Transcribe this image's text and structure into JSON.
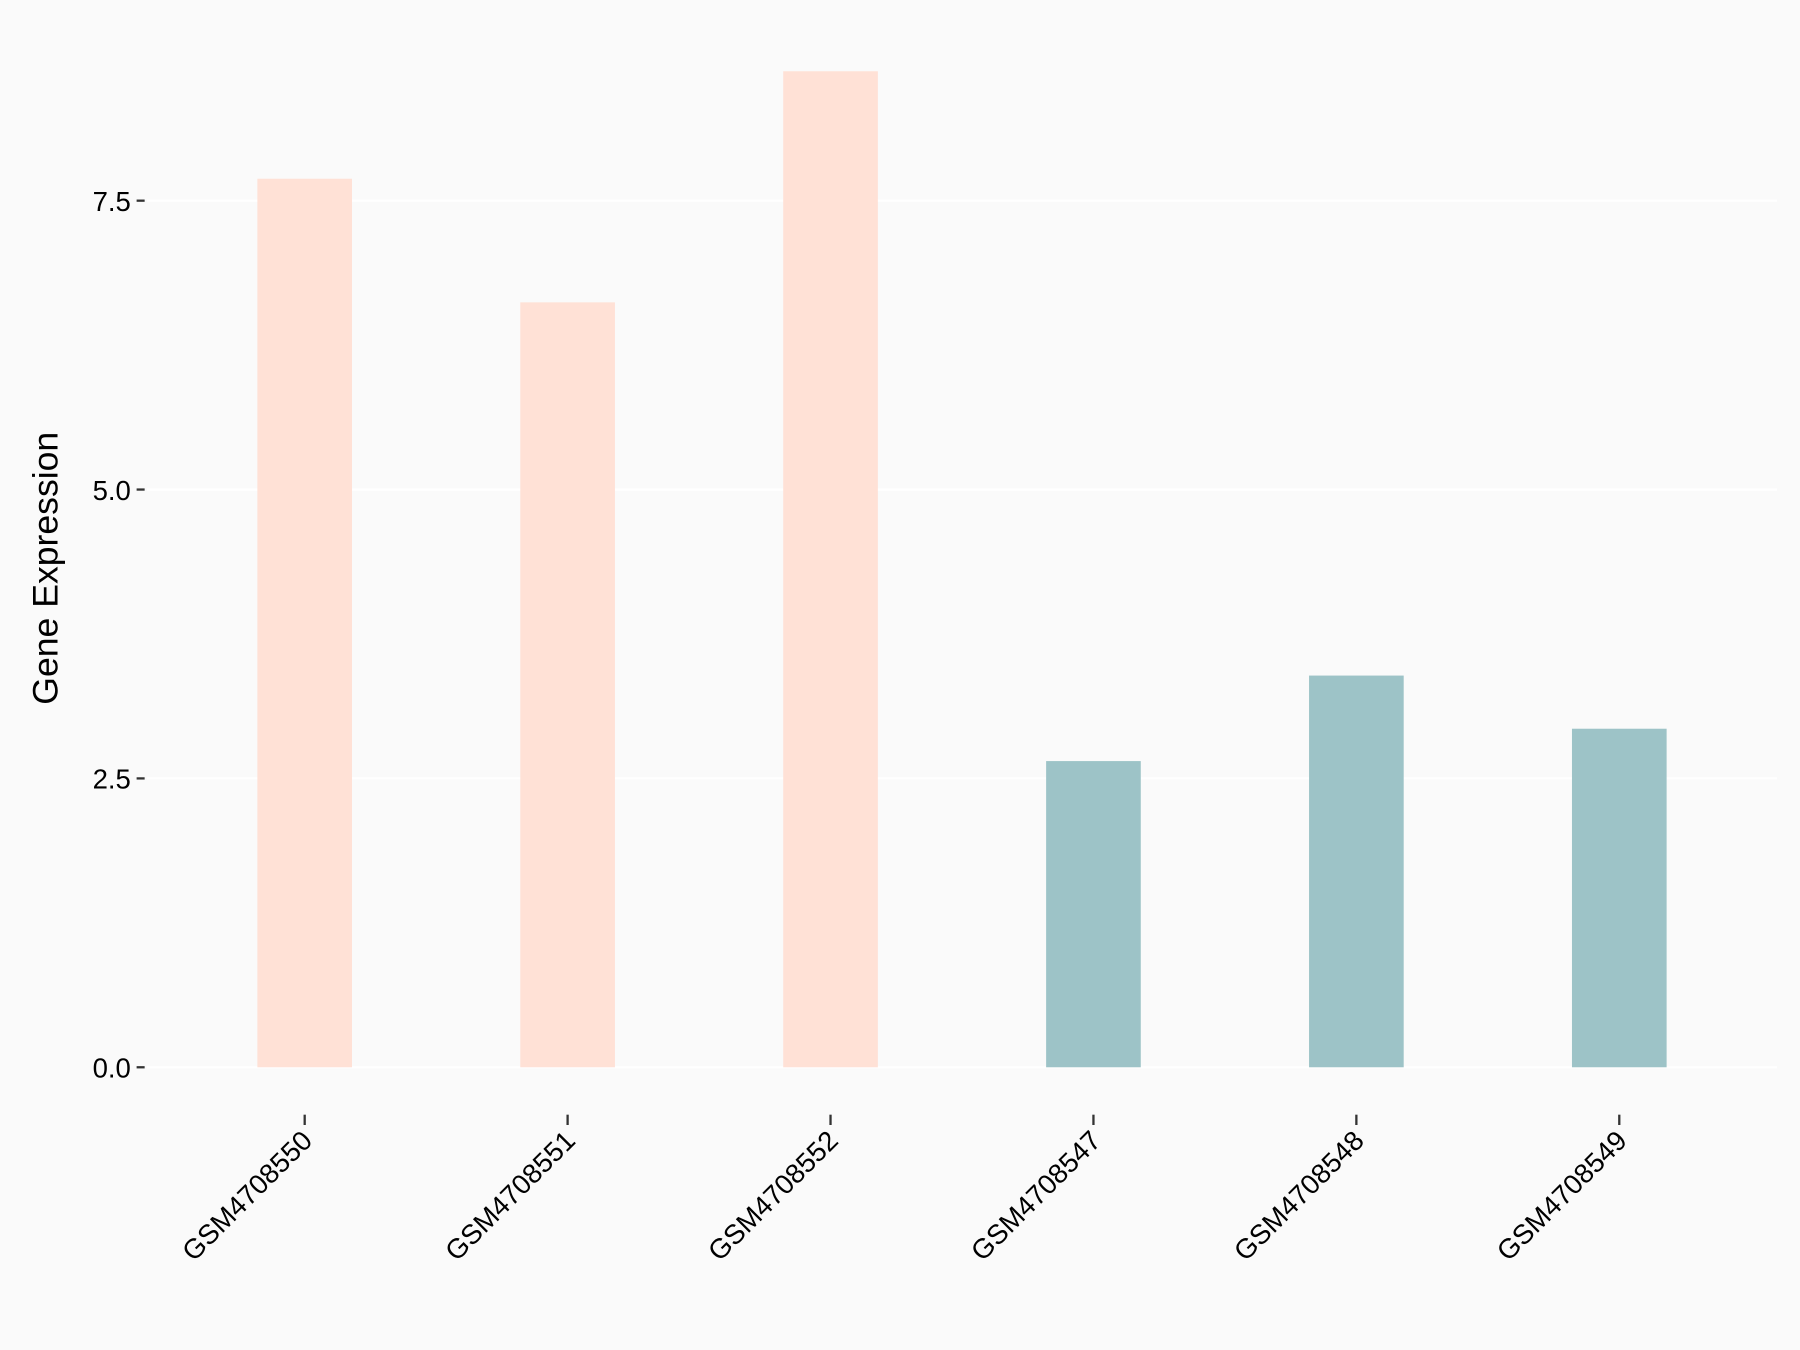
{
  "chart_data": {
    "type": "bar",
    "ylabel": "Gene Expression",
    "categories": [
      "GSM4708550",
      "GSM4708551",
      "GSM4708552",
      "GSM4708547",
      "GSM4708548",
      "GSM4708549"
    ],
    "values": [
      7.69,
      6.62,
      8.62,
      2.65,
      3.39,
      2.93
    ],
    "colors": [
      "#ffe1d6",
      "#ffe1d6",
      "#ffe1d6",
      "#9dc3c7",
      "#9dc3c7",
      "#9dc3c7"
    ],
    "ylim": [
      -0.43,
      8.74
    ],
    "yticks": [
      {
        "value": 0,
        "label": "0.0"
      },
      {
        "value": 2.5,
        "label": "2.5"
      },
      {
        "value": 5,
        "label": "5.0"
      },
      {
        "value": 7.5,
        "label": "7.5"
      }
    ],
    "grid": true
  }
}
